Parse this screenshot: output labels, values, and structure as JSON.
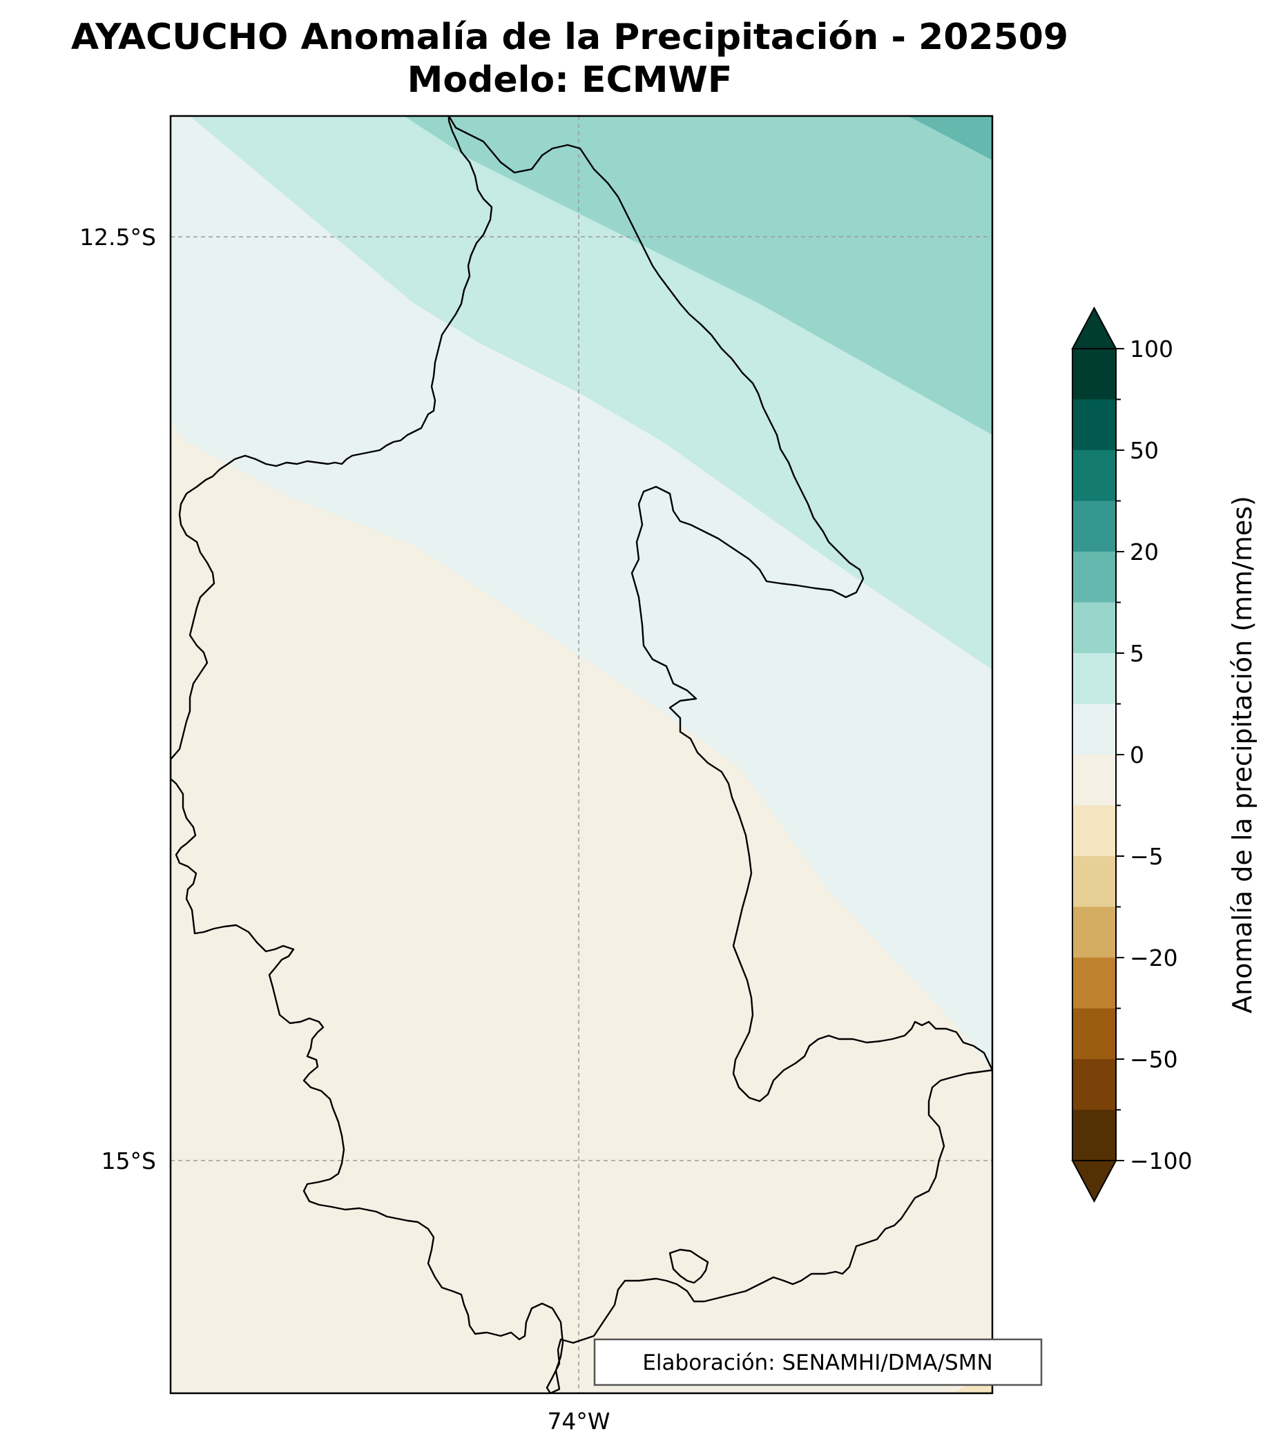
{
  "title": {
    "line1": "AYACUCHO Anomalía de la Precipitación - 202509",
    "line2": "Modelo: ECMWF"
  },
  "map": {
    "lat_labels": [
      "12.5°S",
      "15°S"
    ],
    "lon_labels": [
      "74°W"
    ],
    "credit": "Elaboración: SENAMHI/DMA/SMN"
  },
  "colorbar": {
    "label": "Anomalía de la precipitación (mm/mes)",
    "tick_labels": [
      "100",
      "50",
      "20",
      "5",
      "0",
      "−5",
      "−20",
      "−50",
      "−100"
    ],
    "colors": [
      "#003c30",
      "#01594f",
      "#137a70",
      "#35978f",
      "#66b8ae",
      "#98d6cc",
      "#c6eae4",
      "#e7f2f1",
      "#f5f0e4",
      "#f5e5c0",
      "#e7cf96",
      "#d4ac62",
      "#bf812d",
      "#9c5d13",
      "#7a4108",
      "#543005"
    ],
    "extend_top_color": "#003c30",
    "extend_bottom_color": "#543005"
  },
  "fill_colors": {
    "band_plus_10": "#66b8ae",
    "band_plus_5": "#98d6cc",
    "band_plus_2": "#c6eae4",
    "band_0": "#e7f2f1",
    "band_minus": "#f5f0e4",
    "band_minus_5": "#f5e5c0"
  }
}
